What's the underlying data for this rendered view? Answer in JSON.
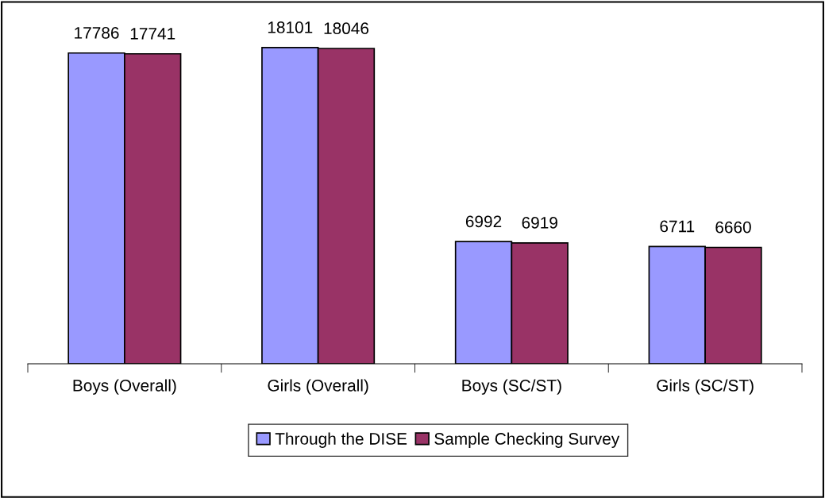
{
  "chart_data": {
    "type": "bar",
    "categories": [
      "Boys (Overall)",
      "Girls (Overall)",
      "Boys (SC/ST)",
      "Girls (SC/ST)"
    ],
    "series": [
      {
        "name": "Through the DISE",
        "color": "#9999ff",
        "values": [
          17786,
          18101,
          6992,
          6711
        ]
      },
      {
        "name": "Sample Checking Survey",
        "color": "#993366",
        "values": [
          17741,
          18046,
          6919,
          6660
        ]
      }
    ],
    "data_labels": true,
    "legend": "bottom",
    "grid": false,
    "tick_labels": "x"
  }
}
